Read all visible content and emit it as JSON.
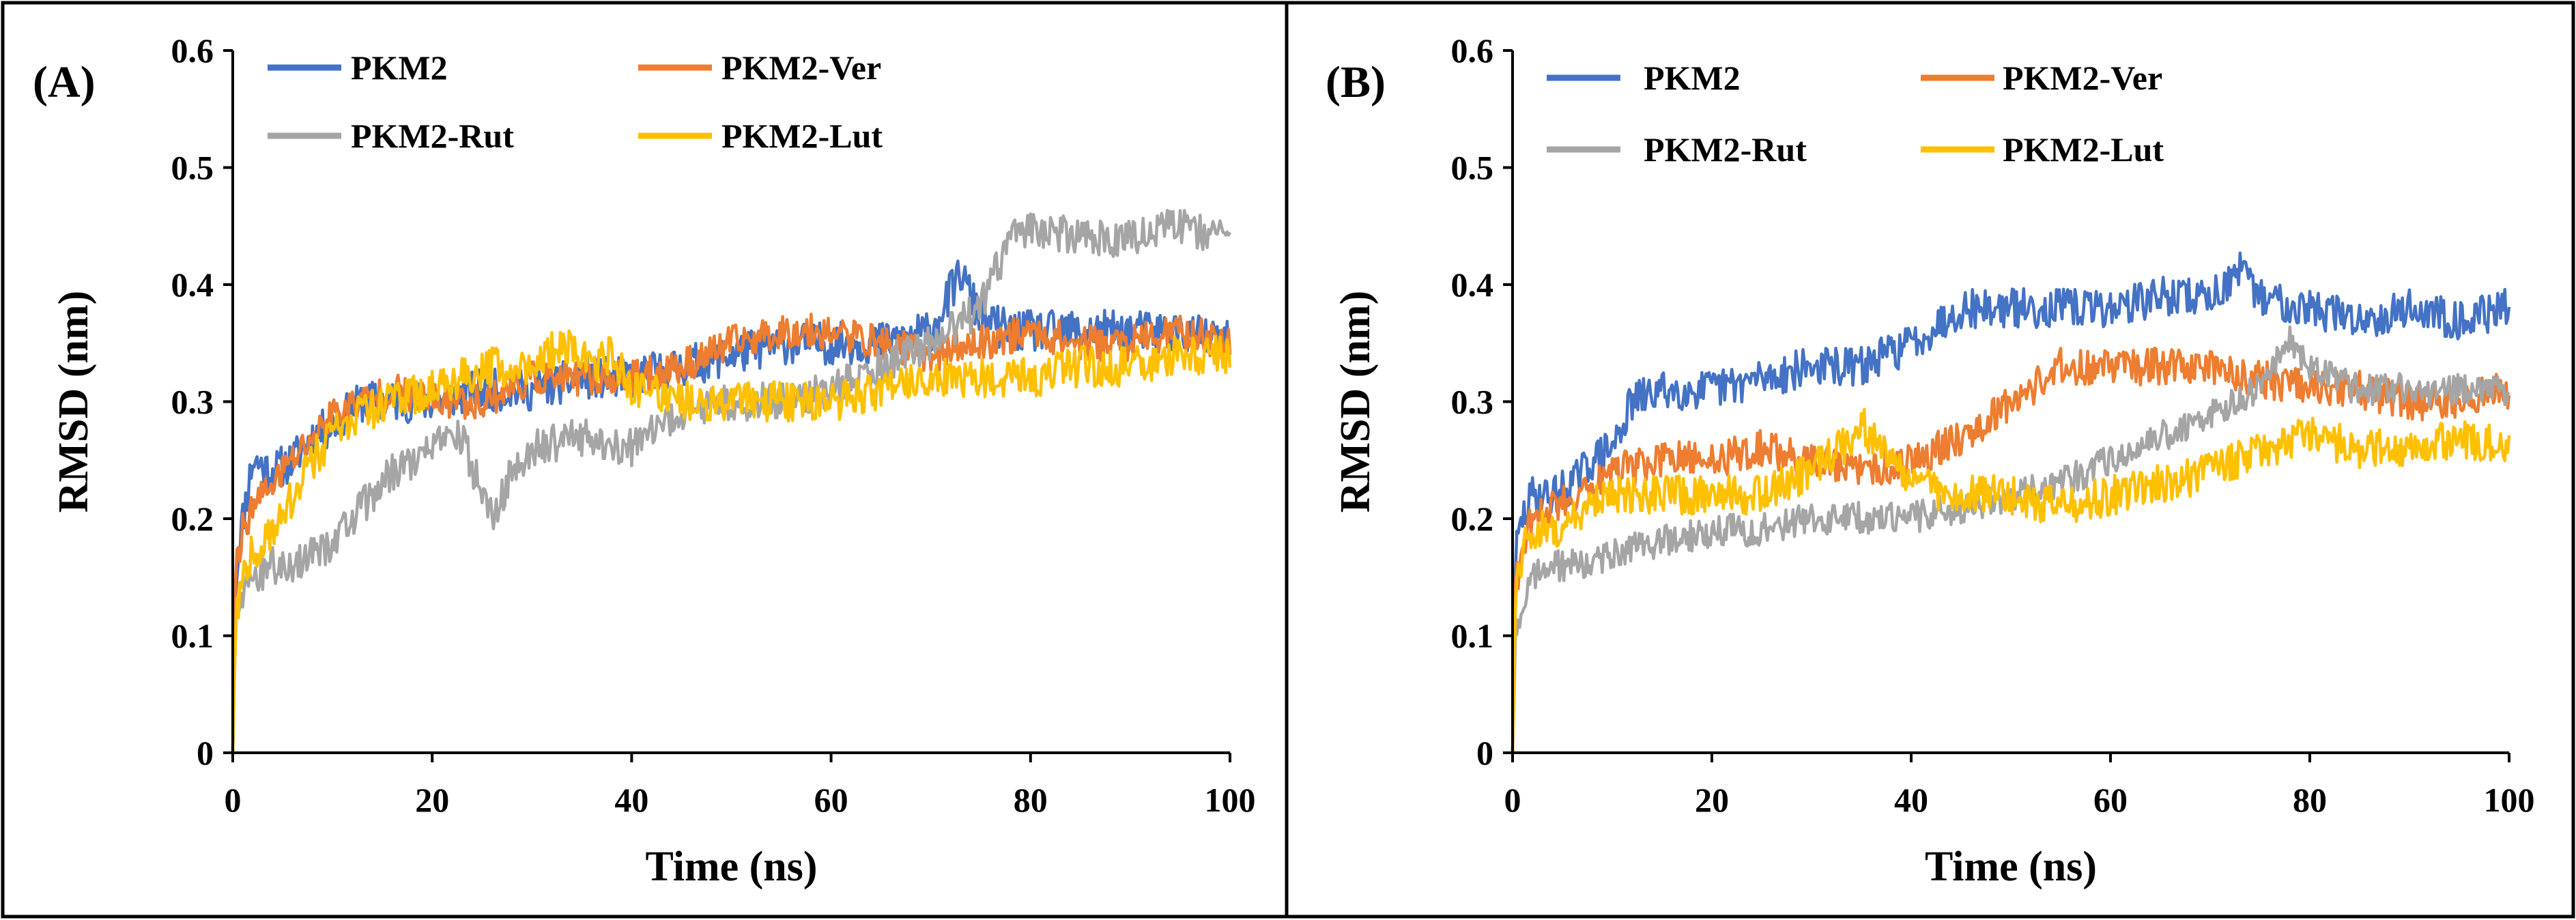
{
  "figure": {
    "panels": [
      "A",
      "B"
    ]
  },
  "chart_data": [
    {
      "panel_label": "(A)",
      "type": "line",
      "xlabel": "Time (ns)",
      "ylabel": "RMSD (nm)",
      "xlim": [
        0,
        100
      ],
      "ylim": [
        0,
        0.6
      ],
      "xticks": [
        0,
        20,
        40,
        60,
        80,
        100
      ],
      "yticks": [
        0,
        0.1,
        0.2,
        0.3,
        0.4,
        0.5,
        0.6
      ],
      "xtick_labels": [
        "0",
        "20",
        "40",
        "60",
        "80",
        "100"
      ],
      "ytick_labels": [
        "0",
        "0.1",
        "0.2",
        "0.3",
        "0.4",
        "0.5",
        "0.6"
      ],
      "grid": false,
      "legend_position": "top-left",
      "noise_seed": 11,
      "series": [
        {
          "name": "PKM2",
          "color": "#4472C4",
          "noise": 0.018,
          "x": [
            0,
            0.3,
            1,
            2,
            4,
            6,
            8,
            10,
            13,
            16,
            20,
            25,
            30,
            35,
            40,
            45,
            50,
            55,
            60,
            65,
            70,
            73,
            75,
            78,
            80,
            85,
            90,
            95,
            100
          ],
          "y": [
            0.0,
            0.15,
            0.2,
            0.25,
            0.24,
            0.25,
            0.27,
            0.28,
            0.3,
            0.3,
            0.3,
            0.31,
            0.31,
            0.32,
            0.32,
            0.33,
            0.34,
            0.35,
            0.35,
            0.35,
            0.36,
            0.41,
            0.37,
            0.36,
            0.36,
            0.36,
            0.36,
            0.36,
            0.35
          ]
        },
        {
          "name": "PKM2-Ver",
          "color": "#ED7D31",
          "noise": 0.015,
          "x": [
            0,
            0.3,
            1,
            2,
            4,
            6,
            8,
            10,
            13,
            16,
            20,
            25,
            30,
            35,
            40,
            45,
            50,
            55,
            60,
            65,
            70,
            75,
            80,
            85,
            90,
            95,
            100
          ],
          "y": [
            0.0,
            0.16,
            0.19,
            0.21,
            0.23,
            0.25,
            0.27,
            0.29,
            0.3,
            0.31,
            0.3,
            0.3,
            0.32,
            0.32,
            0.32,
            0.33,
            0.35,
            0.36,
            0.36,
            0.35,
            0.34,
            0.35,
            0.36,
            0.35,
            0.35,
            0.36,
            0.35
          ]
        },
        {
          "name": "PKM2-Rut",
          "color": "#A5A5A5",
          "noise": 0.016,
          "x": [
            0,
            0.3,
            1,
            2,
            4,
            6,
            8,
            10,
            13,
            16,
            20,
            23,
            25,
            26,
            28,
            30,
            35,
            40,
            45,
            50,
            55,
            60,
            65,
            70,
            75,
            78,
            80,
            85,
            90,
            95,
            100
          ],
          "y": [
            0.0,
            0.12,
            0.14,
            0.15,
            0.16,
            0.16,
            0.17,
            0.18,
            0.21,
            0.24,
            0.26,
            0.27,
            0.22,
            0.2,
            0.24,
            0.26,
            0.27,
            0.26,
            0.29,
            0.3,
            0.3,
            0.31,
            0.33,
            0.35,
            0.38,
            0.44,
            0.45,
            0.44,
            0.44,
            0.45,
            0.44
          ]
        },
        {
          "name": "PKM2-Lut",
          "color": "#FFC000",
          "noise": 0.017,
          "x": [
            0,
            0.3,
            1,
            2,
            4,
            6,
            8,
            10,
            13,
            16,
            20,
            23,
            26,
            30,
            33,
            36,
            38,
            40,
            45,
            50,
            55,
            60,
            65,
            70,
            75,
            80,
            85,
            90,
            95,
            100
          ],
          "y": [
            0.0,
            0.12,
            0.15,
            0.17,
            0.19,
            0.22,
            0.25,
            0.27,
            0.29,
            0.3,
            0.31,
            0.32,
            0.33,
            0.33,
            0.35,
            0.33,
            0.34,
            0.31,
            0.3,
            0.3,
            0.3,
            0.3,
            0.31,
            0.32,
            0.32,
            0.32,
            0.33,
            0.33,
            0.34,
            0.34
          ]
        }
      ]
    },
    {
      "panel_label": "(B)",
      "type": "line",
      "xlabel": "Time (ns)",
      "ylabel": "RMSD (nm)",
      "xlim": [
        0,
        100
      ],
      "ylim": [
        0,
        0.6
      ],
      "xticks": [
        0,
        20,
        40,
        60,
        80,
        100
      ],
      "yticks": [
        0,
        0.1,
        0.2,
        0.3,
        0.4,
        0.5,
        0.6
      ],
      "xtick_labels": [
        "0",
        "20",
        "40",
        "60",
        "80",
        "100"
      ],
      "ytick_labels": [
        "0",
        "0.1",
        "0.2",
        "0.3",
        "0.4",
        "0.5",
        "0.6"
      ],
      "grid": false,
      "legend_position": "top",
      "noise_seed": 29,
      "series": [
        {
          "name": "PKM2",
          "color": "#4472C4",
          "noise": 0.017,
          "x": [
            0,
            0.3,
            1,
            2,
            4,
            6,
            8,
            10,
            12,
            15,
            20,
            25,
            30,
            35,
            40,
            45,
            50,
            55,
            60,
            65,
            70,
            73,
            75,
            80,
            85,
            90,
            95,
            100
          ],
          "y": [
            0.0,
            0.17,
            0.2,
            0.22,
            0.22,
            0.23,
            0.25,
            0.26,
            0.3,
            0.31,
            0.31,
            0.32,
            0.33,
            0.33,
            0.35,
            0.38,
            0.38,
            0.38,
            0.38,
            0.39,
            0.39,
            0.41,
            0.39,
            0.38,
            0.37,
            0.38,
            0.37,
            0.38
          ]
        },
        {
          "name": "PKM2-Ver",
          "color": "#ED7D31",
          "noise": 0.016,
          "x": [
            0,
            0.3,
            1,
            2,
            4,
            6,
            8,
            10,
            15,
            20,
            25,
            30,
            35,
            40,
            45,
            50,
            55,
            60,
            65,
            70,
            75,
            80,
            85,
            90,
            95,
            100
          ],
          "y": [
            0.0,
            0.14,
            0.18,
            0.2,
            0.21,
            0.22,
            0.23,
            0.24,
            0.25,
            0.25,
            0.26,
            0.25,
            0.24,
            0.25,
            0.27,
            0.3,
            0.33,
            0.33,
            0.33,
            0.33,
            0.32,
            0.31,
            0.31,
            0.3,
            0.3,
            0.31
          ]
        },
        {
          "name": "PKM2-Rut",
          "color": "#A5A5A5",
          "noise": 0.014,
          "x": [
            0,
            0.3,
            1,
            2,
            4,
            6,
            8,
            10,
            15,
            20,
            25,
            30,
            35,
            40,
            45,
            50,
            55,
            60,
            65,
            70,
            75,
            78,
            80,
            85,
            90,
            95,
            100
          ],
          "y": [
            0.0,
            0.1,
            0.13,
            0.15,
            0.16,
            0.16,
            0.16,
            0.17,
            0.18,
            0.19,
            0.19,
            0.2,
            0.2,
            0.2,
            0.21,
            0.22,
            0.23,
            0.25,
            0.27,
            0.29,
            0.31,
            0.35,
            0.33,
            0.31,
            0.31,
            0.31,
            0.31
          ]
        },
        {
          "name": "PKM2-Lut",
          "color": "#FFC000",
          "noise": 0.017,
          "x": [
            0,
            0.3,
            1,
            2,
            4,
            6,
            8,
            10,
            15,
            20,
            25,
            30,
            33,
            35,
            37,
            40,
            45,
            50,
            55,
            60,
            65,
            70,
            75,
            80,
            85,
            90,
            95,
            100
          ],
          "y": [
            0.0,
            0.14,
            0.17,
            0.19,
            0.19,
            0.2,
            0.21,
            0.22,
            0.22,
            0.22,
            0.22,
            0.24,
            0.26,
            0.28,
            0.26,
            0.23,
            0.22,
            0.22,
            0.21,
            0.22,
            0.23,
            0.24,
            0.26,
            0.27,
            0.26,
            0.26,
            0.27,
            0.26
          ]
        }
      ]
    }
  ]
}
